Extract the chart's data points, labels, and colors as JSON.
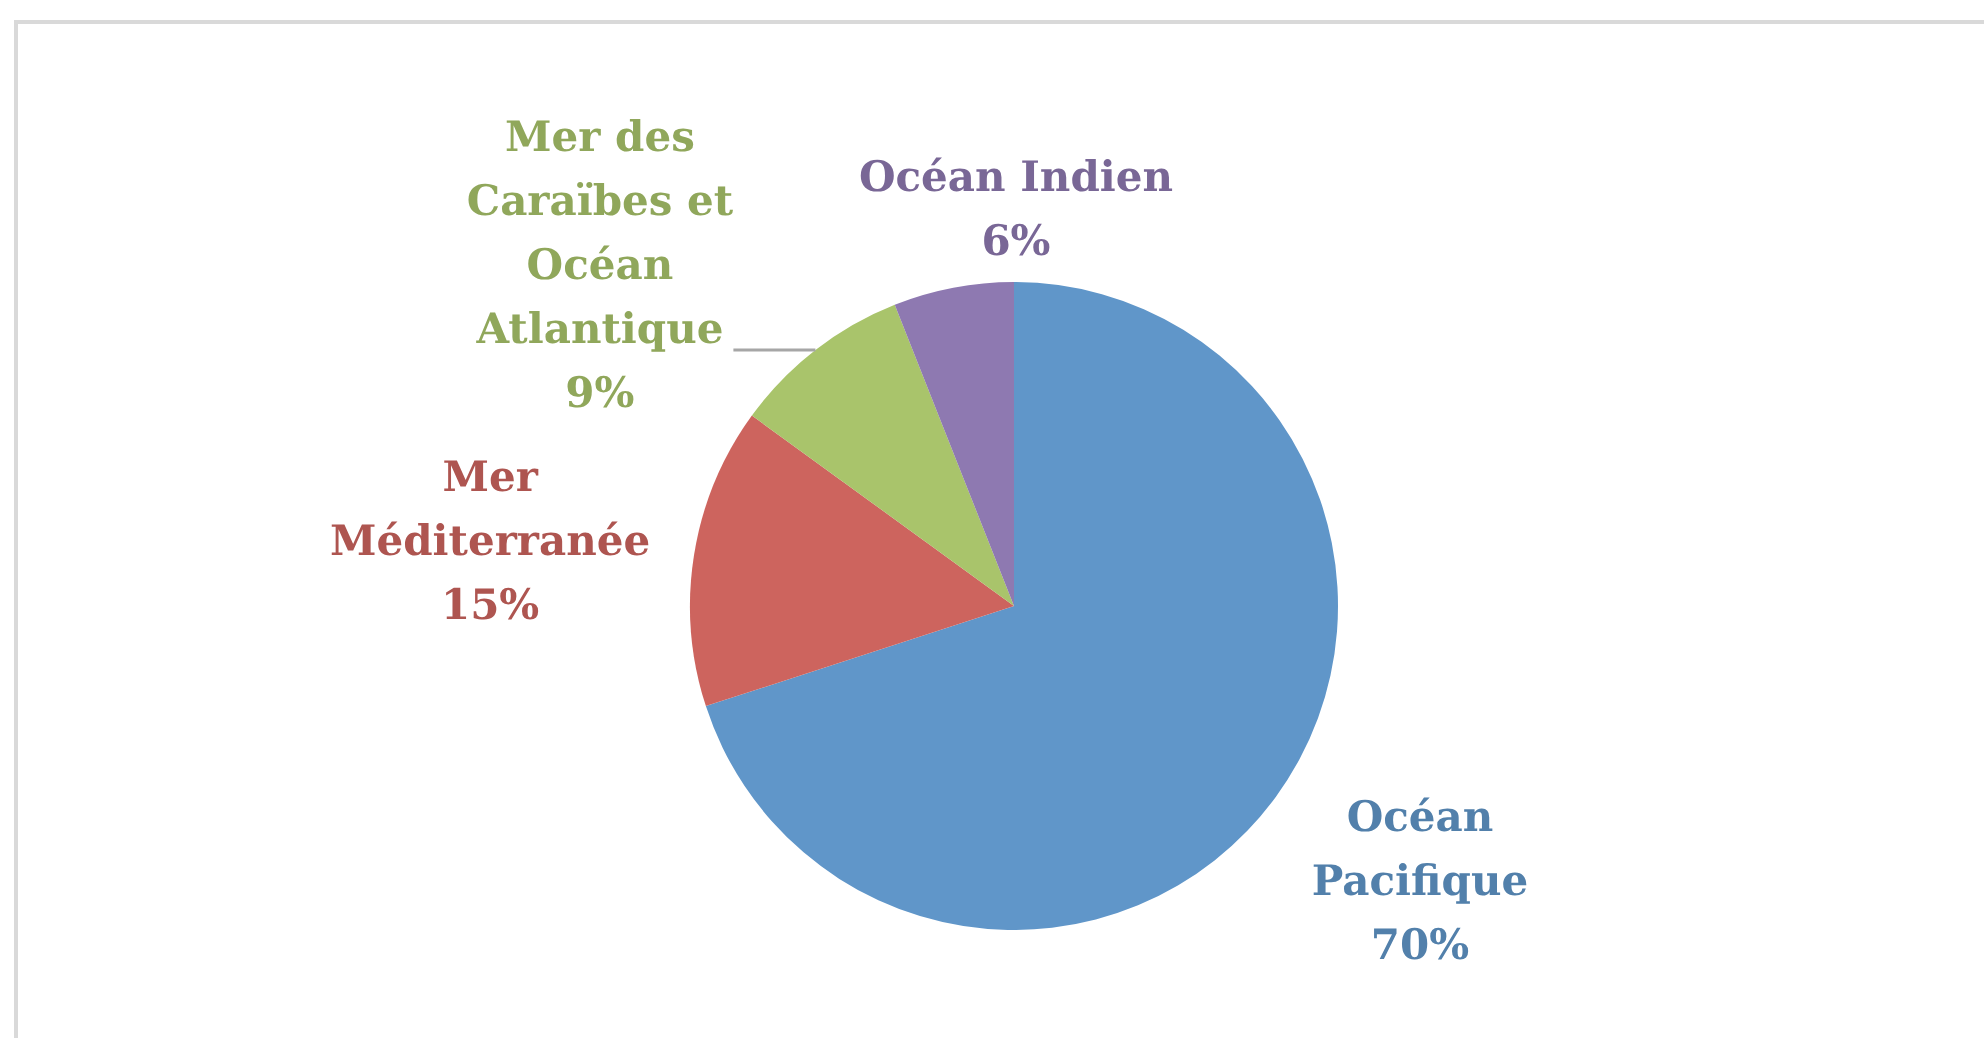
{
  "chart_data": {
    "type": "pie",
    "categories": [
      "Océan Pacifique",
      "Mer Méditerranée",
      "Mer des Caraïbes et Océan Atlantique",
      "Océan Indien"
    ],
    "values": [
      70,
      15,
      9,
      6
    ],
    "colors": [
      "#6096c9",
      "#cd645e",
      "#a9c46b",
      "#8e79b1"
    ],
    "value_labels": [
      "70%",
      "15%",
      "9%",
      "6%"
    ]
  }
}
